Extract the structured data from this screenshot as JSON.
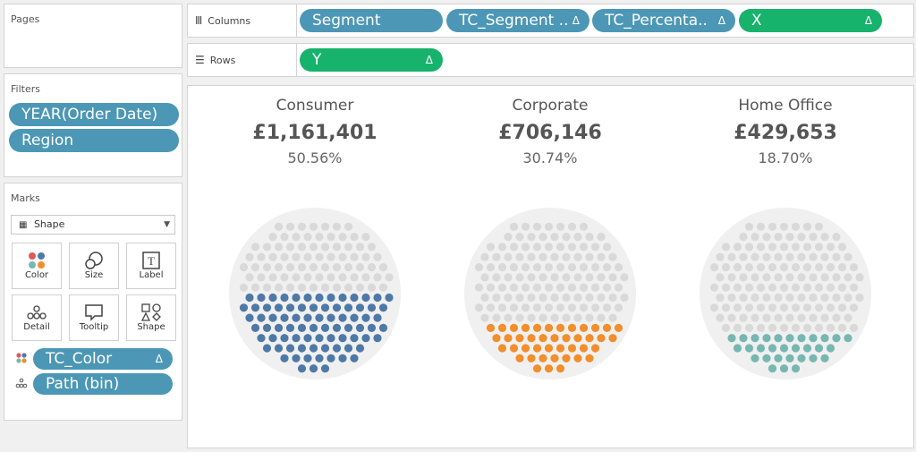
{
  "pages": {
    "title": "Pages"
  },
  "filters": {
    "title": "Filters",
    "pills": [
      "YEAR(Order Date)",
      "Region"
    ]
  },
  "marks": {
    "title": "Marks",
    "mark_type": "Shape",
    "buttons": [
      "Color",
      "Size",
      "Label",
      "Detail",
      "Tooltip",
      "Shape"
    ],
    "fields": [
      {
        "icon": "color-dots-icon",
        "label": "TC_Color",
        "delta": "Δ"
      },
      {
        "icon": "detail-dots-icon",
        "label": "Path (bin)"
      }
    ]
  },
  "columns": {
    "label": "Columns",
    "pills": [
      {
        "label": "Segment",
        "color": "blue"
      },
      {
        "label": "TC_Segment ..",
        "color": "blue",
        "delta": "Δ"
      },
      {
        "label": "TC_Percenta..",
        "color": "blue",
        "delta": "Δ"
      },
      {
        "label": "X",
        "color": "green",
        "delta": "Δ"
      }
    ]
  },
  "rows": {
    "label": "Rows",
    "pills": [
      {
        "label": "Y",
        "color": "green",
        "delta": "Δ"
      }
    ]
  },
  "chart_data": {
    "type": "scatter",
    "segments": [
      {
        "name": "Consumer",
        "value": "£1,161,401",
        "percent": "50.56%",
        "fraction": 0.5056,
        "color": "#4e79a7"
      },
      {
        "name": "Corporate",
        "value": "£706,146",
        "percent": "30.74%",
        "fraction": 0.3074,
        "color": "#f28e2b"
      },
      {
        "name": "Home Office",
        "value": "£429,653",
        "percent": "18.70%",
        "fraction": 0.187,
        "color": "#76b7b2"
      }
    ],
    "background_dot_color": "#d9d9d9",
    "circle_color": "#f0f0f0"
  }
}
